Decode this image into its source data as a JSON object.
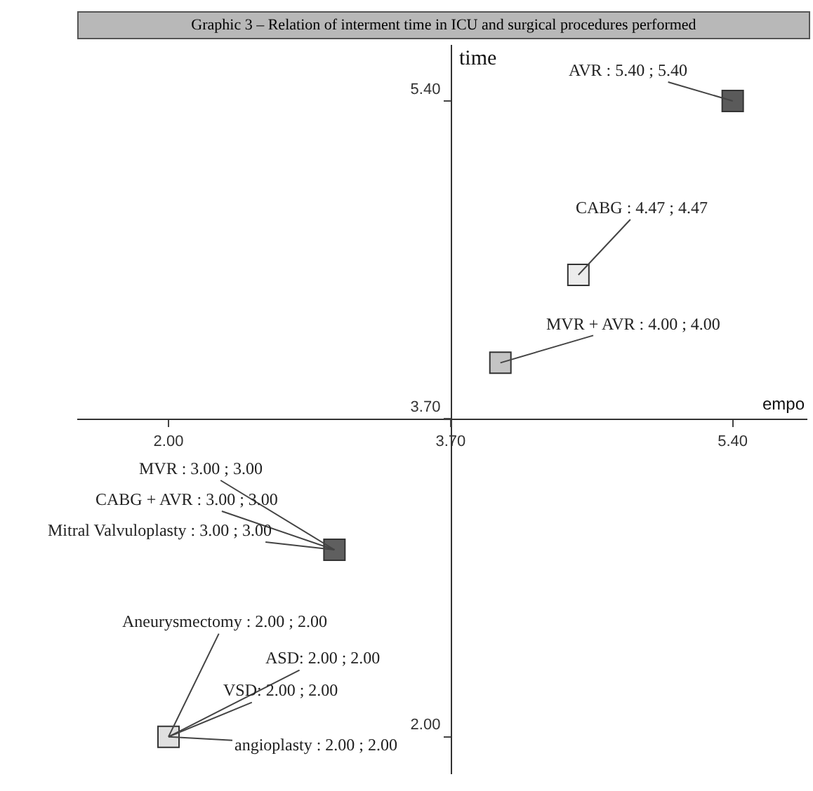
{
  "chart_data": {
    "type": "scatter",
    "title": "Graphic 3 – Relation of interment time in ICU and surgical procedures performed",
    "xlabel": "empo",
    "ylabel": "time",
    "x": [
      5.4,
      4.47,
      4.0,
      3.0,
      2.0
    ],
    "values": [
      5.4,
      4.47,
      4.0,
      3.0,
      2.0
    ],
    "colors": [
      "#5a5a5a",
      "#ececec",
      "#c4c4c4",
      "#5f5f5f",
      "#e0e0e0"
    ],
    "marker": "square",
    "grid": false,
    "xlim": [
      1.45,
      5.85
    ],
    "ylim": [
      1.8,
      5.7
    ],
    "xticks": [
      {
        "value": 2.0,
        "label": "2.00"
      },
      {
        "value": 3.7,
        "label": "3.70"
      },
      {
        "value": 5.4,
        "label": "5.40"
      }
    ],
    "yticks": [
      {
        "value": 2.0,
        "label": "2.00"
      },
      {
        "value": 3.7,
        "label": "3.70"
      },
      {
        "value": 5.4,
        "label": "5.40"
      }
    ],
    "annotations": [
      {
        "text": "AVR : 5.40 ; 5.40",
        "x": 5.4,
        "y": 5.4
      },
      {
        "text": "CABG : 4.47 ; 4.47",
        "x": 4.47,
        "y": 4.47
      },
      {
        "text": "MVR + AVR : 4.00 ; 4.00",
        "x": 4.0,
        "y": 4.0
      },
      {
        "text": "MVR : 3.00 ; 3.00",
        "x": 3.0,
        "y": 3.0
      },
      {
        "text": "CABG + AVR : 3.00 ; 3.00",
        "x": 3.0,
        "y": 3.0
      },
      {
        "text": "Mitral Valvuloplasty : 3.00 ; 3.00",
        "x": 3.0,
        "y": 3.0
      },
      {
        "text": "Aneurysmectomy : 2.00 ; 2.00",
        "x": 2.0,
        "y": 2.0
      },
      {
        "text": "ASD: 2.00 ; 2.00",
        "x": 2.0,
        "y": 2.0
      },
      {
        "text": "VSD: 2.00 ; 2.00",
        "x": 2.0,
        "y": 2.0
      },
      {
        "text": "angioplasty : 2.00 ; 2.00",
        "x": 2.0,
        "y": 2.0
      }
    ]
  }
}
